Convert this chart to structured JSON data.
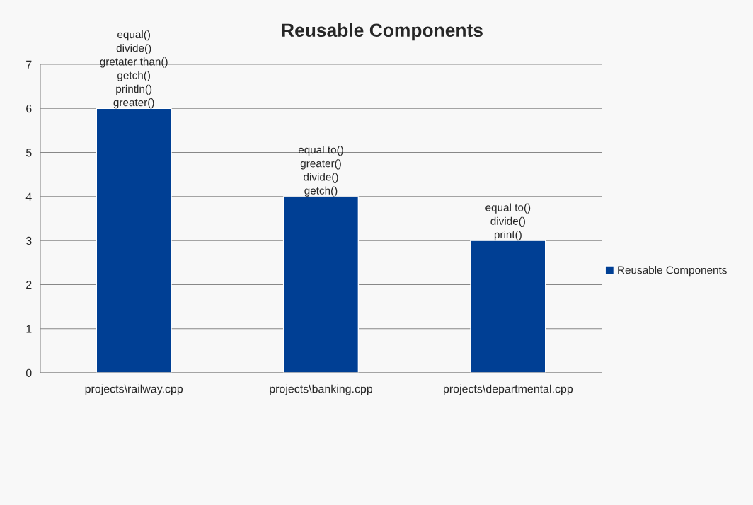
{
  "chart_data": {
    "type": "bar",
    "title": "Reusable Components",
    "categories": [
      "projects\\railway.cpp",
      "projects\\banking.cpp",
      "projects\\departmental.cpp"
    ],
    "series": [
      {
        "name": "Reusable Components",
        "color": "#003f94",
        "values": [
          6,
          4,
          3
        ],
        "value_labels": [
          "equal()\ndivide()\ngretater than()\ngetch()\nprintln()\ngreater()",
          "equal to()\ngreater()\ndivide()\ngetch()",
          "equal to()\ndivide()\nprint()"
        ]
      }
    ],
    "ylim": [
      0,
      7
    ],
    "yticks": [
      0,
      1,
      2,
      3,
      4,
      5,
      6,
      7
    ],
    "grid": "y",
    "legend": "right"
  }
}
